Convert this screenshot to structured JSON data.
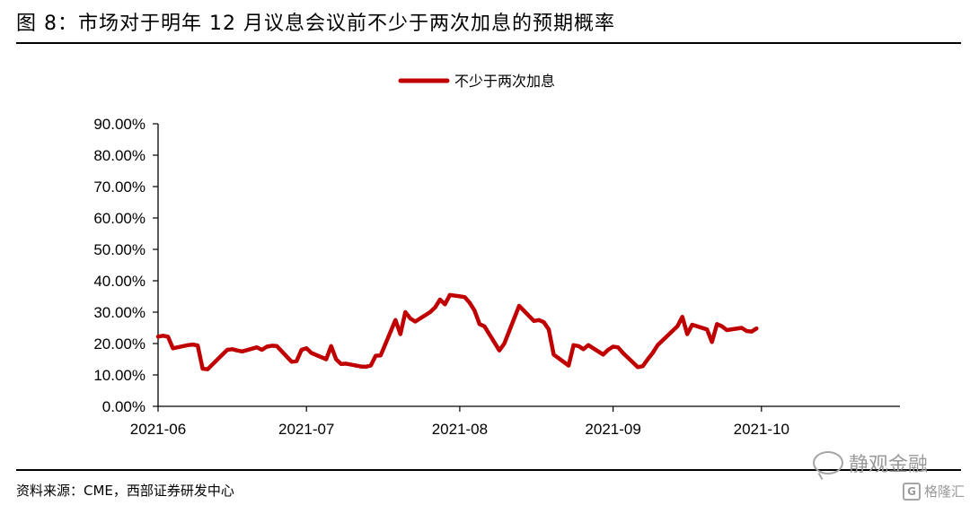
{
  "figure": {
    "title": "图 8：市场对于明年 12 月议息会议前不少于两次加息的预期概率",
    "source": "资料来源：CME，西部证券研发中心"
  },
  "watermark": {
    "main": "静观金融",
    "sub": "格隆汇",
    "bubble_icon": "wechat-bubble-icon",
    "g_icon": "gelonghui-logo-icon"
  },
  "chart_data": {
    "type": "line",
    "title": "",
    "xlabel": "",
    "ylabel": "",
    "ylim": [
      0,
      0.9
    ],
    "yticks": [
      0,
      0.1,
      0.2,
      0.3,
      0.4,
      0.5,
      0.6,
      0.7,
      0.8,
      0.9
    ],
    "ytick_labels": [
      "0.00%",
      "10.00%",
      "20.00%",
      "30.00%",
      "40.00%",
      "50.00%",
      "60.00%",
      "70.00%",
      "80.00%",
      "90.00%"
    ],
    "xlim": [
      "2021-06-01",
      "2021-10-29"
    ],
    "xticks": [
      "2021-06-01",
      "2021-07-01",
      "2021-08-01",
      "2021-09-01",
      "2021-10-01"
    ],
    "xtick_labels": [
      "2021-06",
      "2021-07",
      "2021-08",
      "2021-09",
      "2021-10"
    ],
    "legend": {
      "position": "top-center"
    },
    "grid": false,
    "series": [
      {
        "name": "不少于两次加息",
        "color": "#c00000",
        "points": [
          [
            "2021-06-01",
            0.222
          ],
          [
            "2021-06-02",
            0.225
          ],
          [
            "2021-06-03",
            0.222
          ],
          [
            "2021-06-04",
            0.185
          ],
          [
            "2021-06-07",
            0.195
          ],
          [
            "2021-06-08",
            0.197
          ],
          [
            "2021-06-09",
            0.194
          ],
          [
            "2021-06-10",
            0.12
          ],
          [
            "2021-06-11",
            0.118
          ],
          [
            "2021-06-14",
            0.165
          ],
          [
            "2021-06-15",
            0.18
          ],
          [
            "2021-06-16",
            0.182
          ],
          [
            "2021-06-17",
            0.178
          ],
          [
            "2021-06-18",
            0.175
          ],
          [
            "2021-06-21",
            0.188
          ],
          [
            "2021-06-22",
            0.18
          ],
          [
            "2021-06-23",
            0.19
          ],
          [
            "2021-06-24",
            0.193
          ],
          [
            "2021-06-25",
            0.192
          ],
          [
            "2021-06-28",
            0.142
          ],
          [
            "2021-06-29",
            0.144
          ],
          [
            "2021-06-30",
            0.18
          ],
          [
            "2021-07-01",
            0.185
          ],
          [
            "2021-07-02",
            0.17
          ],
          [
            "2021-07-05",
            0.15
          ],
          [
            "2021-07-06",
            0.192
          ],
          [
            "2021-07-07",
            0.15
          ],
          [
            "2021-07-08",
            0.135
          ],
          [
            "2021-07-09",
            0.136
          ],
          [
            "2021-07-12",
            0.127
          ],
          [
            "2021-07-13",
            0.126
          ],
          [
            "2021-07-14",
            0.13
          ],
          [
            "2021-07-15",
            0.161
          ],
          [
            "2021-07-16",
            0.162
          ],
          [
            "2021-07-19",
            0.275
          ],
          [
            "2021-07-20",
            0.23
          ],
          [
            "2021-07-21",
            0.3
          ],
          [
            "2021-07-22",
            0.28
          ],
          [
            "2021-07-23",
            0.27
          ],
          [
            "2021-07-26",
            0.3
          ],
          [
            "2021-07-27",
            0.315
          ],
          [
            "2021-07-28",
            0.34
          ],
          [
            "2021-07-29",
            0.325
          ],
          [
            "2021-07-30",
            0.355
          ],
          [
            "2021-08-02",
            0.348
          ],
          [
            "2021-08-03",
            0.33
          ],
          [
            "2021-08-04",
            0.305
          ],
          [
            "2021-08-05",
            0.262
          ],
          [
            "2021-08-06",
            0.255
          ],
          [
            "2021-08-09",
            0.178
          ],
          [
            "2021-08-10",
            0.2
          ],
          [
            "2021-08-11",
            0.24
          ],
          [
            "2021-08-12",
            0.28
          ],
          [
            "2021-08-13",
            0.32
          ],
          [
            "2021-08-16",
            0.272
          ],
          [
            "2021-08-17",
            0.275
          ],
          [
            "2021-08-18",
            0.268
          ],
          [
            "2021-08-19",
            0.245
          ],
          [
            "2021-08-20",
            0.165
          ],
          [
            "2021-08-23",
            0.13
          ],
          [
            "2021-08-24",
            0.195
          ],
          [
            "2021-08-25",
            0.192
          ],
          [
            "2021-08-26",
            0.182
          ],
          [
            "2021-08-27",
            0.195
          ],
          [
            "2021-08-30",
            0.165
          ],
          [
            "2021-08-31",
            0.18
          ],
          [
            "2021-09-01",
            0.19
          ],
          [
            "2021-09-02",
            0.188
          ],
          [
            "2021-09-03",
            0.17
          ],
          [
            "2021-09-06",
            0.125
          ],
          [
            "2021-09-07",
            0.128
          ],
          [
            "2021-09-08",
            0.15
          ],
          [
            "2021-09-09",
            0.17
          ],
          [
            "2021-09-10",
            0.195
          ],
          [
            "2021-09-13",
            0.24
          ],
          [
            "2021-09-14",
            0.255
          ],
          [
            "2021-09-15",
            0.285
          ],
          [
            "2021-09-16",
            0.23
          ],
          [
            "2021-09-17",
            0.26
          ],
          [
            "2021-09-20",
            0.245
          ],
          [
            "2021-09-21",
            0.205
          ],
          [
            "2021-09-22",
            0.262
          ],
          [
            "2021-09-23",
            0.255
          ],
          [
            "2021-09-24",
            0.243
          ],
          [
            "2021-09-27",
            0.25
          ],
          [
            "2021-09-28",
            0.24
          ],
          [
            "2021-09-29",
            0.238
          ],
          [
            "2021-09-30",
            0.248
          ]
        ]
      }
    ]
  }
}
